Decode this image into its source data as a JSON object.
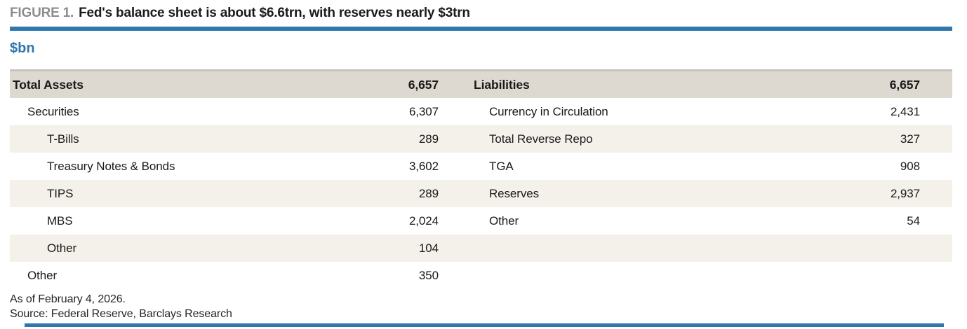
{
  "figure": {
    "label": "FIGURE 1.",
    "title": "Fed's balance sheet is about $6.6trn, with reserves nearly $3trn",
    "unit": "$bn"
  },
  "colors": {
    "accent_blue": "#2f77ae",
    "figure_label_gray": "#8c8c8c",
    "header_band_beige": "#ddd8d0",
    "stripe_beige": "#f4f0ea",
    "text_dark": "#1a1a1a"
  },
  "chart_data": {
    "type": "table",
    "title": "Fed's balance sheet is about $6.6trn, with reserves nearly $3trn",
    "unit": "$bn",
    "assets": {
      "header": {
        "label": "Total Assets",
        "value": "6,657"
      },
      "rows": [
        {
          "label": "Securities",
          "value": "6,307",
          "indent": 1
        },
        {
          "label": "T-Bills",
          "value": "289",
          "indent": 2
        },
        {
          "label": "Treasury Notes & Bonds",
          "value": "3,602",
          "indent": 2
        },
        {
          "label": "TIPS",
          "value": "289",
          "indent": 2
        },
        {
          "label": "MBS",
          "value": "2,024",
          "indent": 2
        },
        {
          "label": "Other",
          "value": "104",
          "indent": 2
        },
        {
          "label": "Other",
          "value": "350",
          "indent": 1
        }
      ]
    },
    "liabilities": {
      "header": {
        "label": "Liabilities",
        "value": "6,657"
      },
      "rows": [
        {
          "label": "Currency in Circulation",
          "value": "2,431"
        },
        {
          "label": "Total Reverse Repo",
          "value": "327"
        },
        {
          "label": "TGA",
          "value": "908"
        },
        {
          "label": "Reserves",
          "value": "2,937"
        },
        {
          "label": "Other",
          "value": "54"
        },
        {
          "label": "",
          "value": ""
        },
        {
          "label": "",
          "value": ""
        }
      ]
    }
  },
  "footer": {
    "as_of": "As of February 4, 2026.",
    "source": "Source: Federal Reserve, Barclays Research"
  }
}
